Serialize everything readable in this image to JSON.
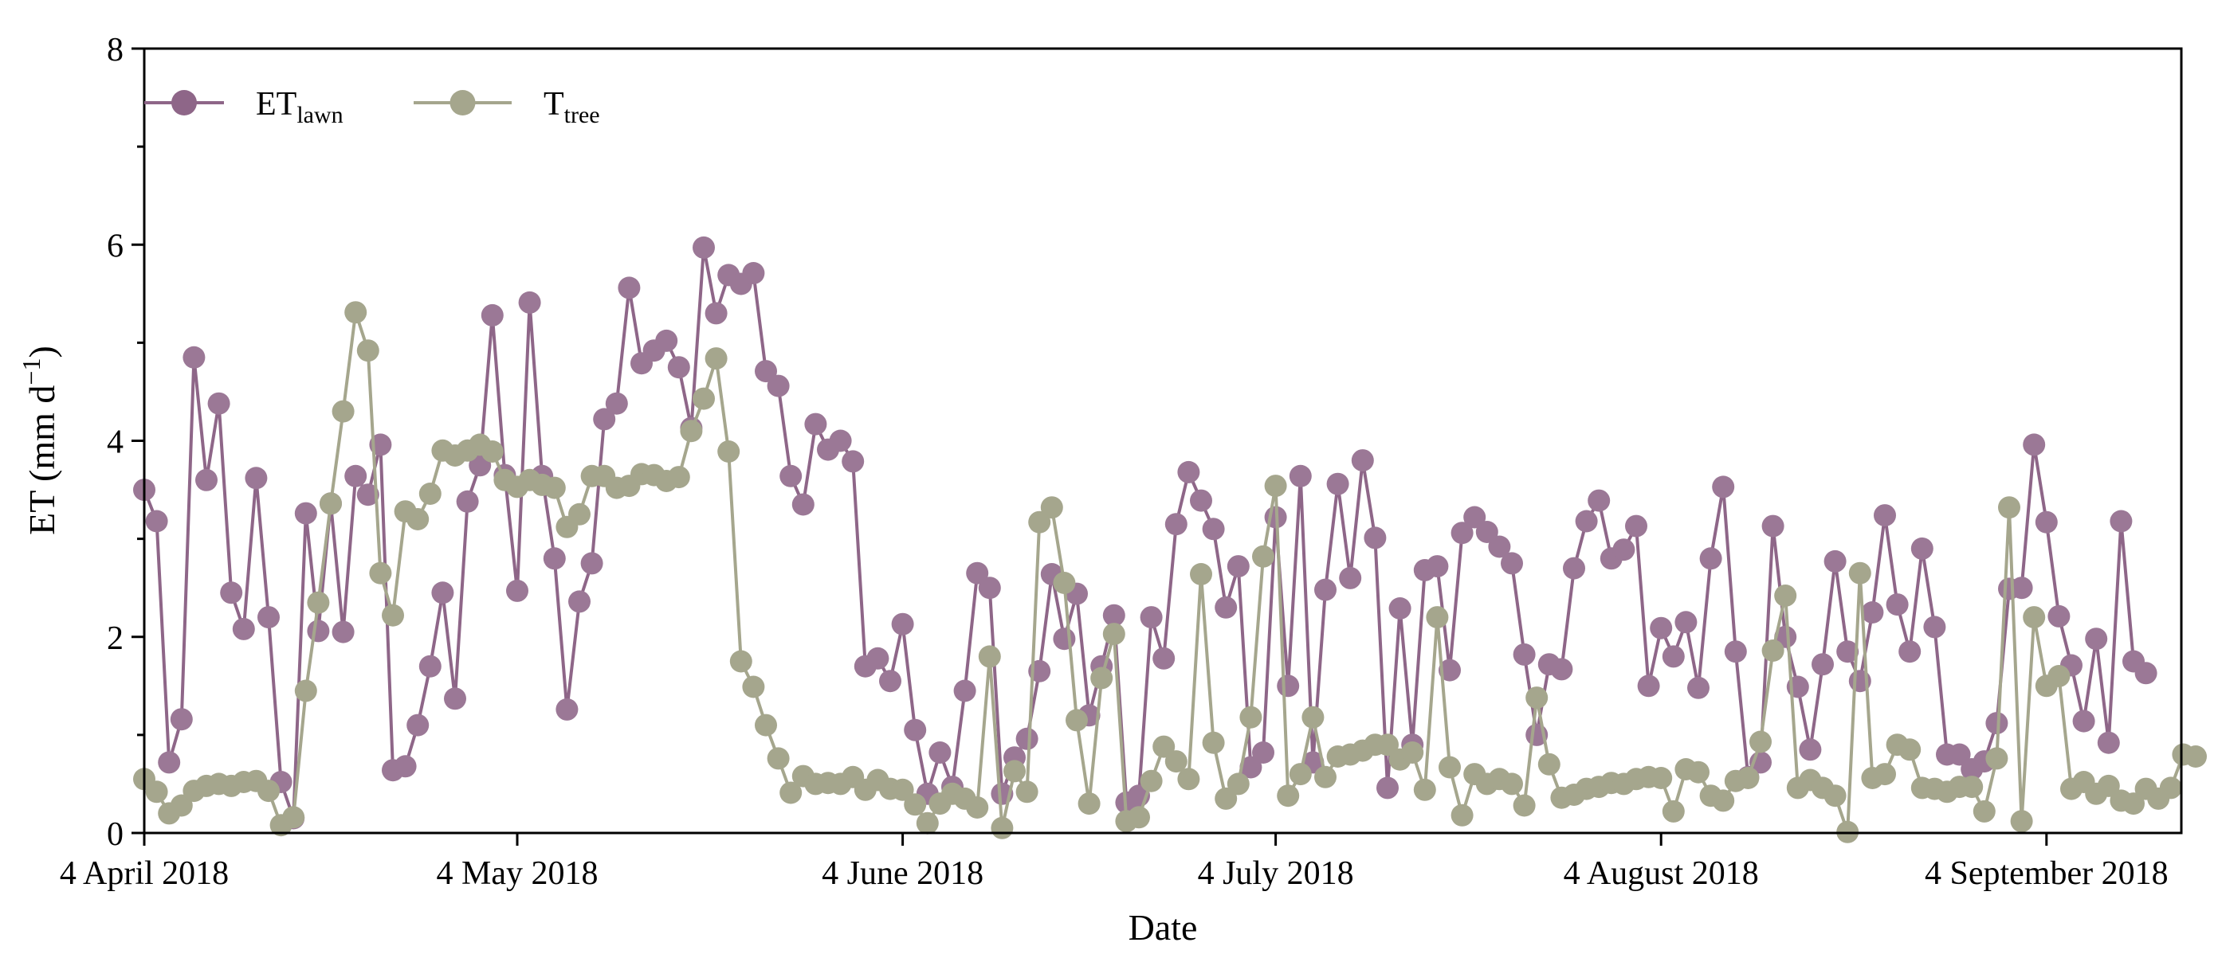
{
  "chart_data": {
    "type": "line",
    "xlabel": "Date",
    "ylabel": {
      "main": "ET (mm d",
      "sup": "−1",
      "close": ")"
    },
    "ylim": [
      0,
      8
    ],
    "yticks": [
      0,
      2,
      4,
      6,
      8
    ],
    "x_range_days": [
      0,
      164
    ],
    "xticks": [
      {
        "day": 0,
        "label": "4 April 2018"
      },
      {
        "day": 30,
        "label": "4 May 2018"
      },
      {
        "day": 61,
        "label": "4 June 2018"
      },
      {
        "day": 91,
        "label": "4 July 2018"
      },
      {
        "day": 122,
        "label": "4 August 2018"
      },
      {
        "day": 153,
        "label": "4 September 2018"
      }
    ],
    "legend": {
      "placement": "top-left",
      "entries": [
        {
          "main": "ET",
          "sub": "lawn",
          "color": "#8e6688"
        },
        {
          "main": "T",
          "sub": "tree",
          "color": "#a5a68d"
        }
      ]
    },
    "series": [
      {
        "name": "ET_lawn",
        "color": "#8e6688",
        "marker_color": "#9b7896",
        "values": [
          3.5,
          3.18,
          0.72,
          1.16,
          4.85,
          3.6,
          4.38,
          2.45,
          2.08,
          3.62,
          2.2,
          0.52,
          0.15,
          3.26,
          2.06,
          3.36,
          2.05,
          3.64,
          3.45,
          3.96,
          0.64,
          0.68,
          1.1,
          1.7,
          2.45,
          1.37,
          3.38,
          3.75,
          5.28,
          3.65,
          2.47,
          5.41,
          3.64,
          2.8,
          1.26,
          2.36,
          2.75,
          4.22,
          4.38,
          5.56,
          4.79,
          4.92,
          5.02,
          4.75,
          4.13,
          5.97,
          5.3,
          5.69,
          5.6,
          5.71,
          4.71,
          4.56,
          3.64,
          3.35,
          4.17,
          3.91,
          4.0,
          3.79,
          1.7,
          1.78,
          1.55,
          2.13,
          1.05,
          0.4,
          0.82,
          0.47,
          1.45,
          2.65,
          2.5,
          0.4,
          0.77,
          0.96,
          1.65,
          2.64,
          1.98,
          2.44,
          1.2,
          1.7,
          2.22,
          0.31,
          0.38,
          2.2,
          1.78,
          3.15,
          3.68,
          3.39,
          3.1,
          2.3,
          2.72,
          0.67,
          0.82,
          3.22,
          1.5,
          3.64,
          0.72,
          2.48,
          3.56,
          2.6,
          3.8,
          3.01,
          0.46,
          2.29,
          0.9,
          2.68,
          2.72,
          1.66,
          3.06,
          3.22,
          3.07,
          2.92,
          2.75,
          1.82,
          1.0,
          1.72,
          1.67,
          2.7,
          3.18,
          3.39,
          2.8,
          2.89,
          3.13,
          1.5,
          2.09,
          1.8,
          2.15,
          1.48,
          2.8,
          3.53,
          1.85,
          0.57,
          0.72,
          3.13,
          2.0,
          1.49,
          0.85,
          1.72,
          2.77,
          1.85,
          1.55,
          2.25,
          3.24,
          2.33,
          1.85,
          2.9,
          2.1,
          0.8,
          0.8,
          0.65,
          0.73,
          1.12,
          2.49,
          2.5,
          3.96,
          3.17,
          2.21,
          1.71,
          1.14,
          1.98,
          0.92,
          3.18,
          1.75,
          1.63
        ]
      },
      {
        "name": "T_tree",
        "color": "#a5a68d",
        "marker_color": "#a5a68d",
        "values": [
          0.55,
          0.42,
          0.2,
          0.28,
          0.43,
          0.48,
          0.5,
          0.48,
          0.52,
          0.53,
          0.43,
          0.08,
          0.16,
          1.45,
          2.35,
          3.36,
          4.3,
          5.31,
          4.92,
          2.65,
          2.22,
          3.28,
          3.2,
          3.46,
          3.9,
          3.85,
          3.9,
          3.96,
          3.89,
          3.6,
          3.53,
          3.6,
          3.55,
          3.52,
          3.12,
          3.25,
          3.64,
          3.64,
          3.52,
          3.54,
          3.66,
          3.65,
          3.59,
          3.63,
          4.1,
          4.43,
          4.84,
          3.89,
          1.75,
          1.49,
          1.1,
          0.76,
          0.41,
          0.58,
          0.5,
          0.51,
          0.5,
          0.57,
          0.44,
          0.54,
          0.45,
          0.44,
          0.29,
          0.1,
          0.3,
          0.4,
          0.35,
          0.26,
          1.8,
          0.05,
          0.63,
          0.42,
          3.17,
          3.32,
          2.55,
          1.15,
          0.3,
          1.58,
          2.03,
          0.12,
          0.16,
          0.53,
          0.88,
          0.73,
          0.55,
          2.64,
          0.92,
          0.35,
          0.5,
          1.18,
          2.82,
          3.54,
          0.38,
          0.6,
          1.18,
          0.57,
          0.78,
          0.8,
          0.84,
          0.9,
          0.9,
          0.75,
          0.82,
          0.44,
          2.2,
          0.67,
          0.18,
          0.6,
          0.5,
          0.55,
          0.5,
          0.28,
          1.38,
          0.7,
          0.36,
          0.39,
          0.45,
          0.47,
          0.51,
          0.5,
          0.55,
          0.57,
          0.56,
          0.22,
          0.65,
          0.62,
          0.38,
          0.33,
          0.53,
          0.56,
          0.93,
          1.86,
          2.42,
          0.46,
          0.54,
          0.46,
          0.38,
          0.01,
          2.65,
          0.56,
          0.6,
          0.9,
          0.85,
          0.46,
          0.45,
          0.42,
          0.47,
          0.47,
          0.22,
          0.76,
          3.32,
          0.12,
          2.2,
          1.5,
          1.6,
          0.45,
          0.52,
          0.4,
          0.48,
          0.33,
          0.3,
          0.45,
          0.35,
          0.46,
          0.8,
          0.78
        ]
      }
    ]
  }
}
